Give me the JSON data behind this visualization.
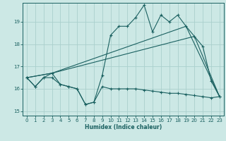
{
  "xlabel": "Humidex (Indice chaleur)",
  "bg_color": "#cce8e5",
  "grid_color": "#aad0cd",
  "line_color": "#1a6060",
  "xlim": [
    -0.5,
    23.5
  ],
  "ylim": [
    14.8,
    19.85
  ],
  "xticks": [
    0,
    1,
    2,
    3,
    4,
    5,
    6,
    7,
    8,
    9,
    10,
    11,
    12,
    13,
    14,
    15,
    16,
    17,
    18,
    19,
    20,
    21,
    22,
    23
  ],
  "yticks": [
    15,
    16,
    17,
    18,
    19
  ],
  "series_main_x": [
    0,
    1,
    2,
    3,
    4,
    5,
    6,
    7,
    8,
    9,
    10,
    11,
    12,
    13,
    14,
    15,
    16,
    17,
    18,
    19,
    20,
    21,
    22,
    23
  ],
  "series_main_y": [
    16.5,
    16.1,
    16.5,
    16.7,
    16.2,
    16.1,
    16.0,
    15.3,
    15.4,
    16.6,
    18.4,
    18.8,
    18.8,
    19.2,
    19.75,
    18.55,
    19.3,
    19.0,
    19.3,
    18.8,
    18.35,
    17.9,
    16.35,
    15.65
  ],
  "series_flat_x": [
    0,
    1,
    2,
    3,
    4,
    5,
    6,
    7,
    8,
    9,
    10,
    11,
    12,
    13,
    14,
    15,
    16,
    17,
    18,
    19,
    20,
    21,
    22,
    23
  ],
  "series_flat_y": [
    16.5,
    16.1,
    16.5,
    16.5,
    16.2,
    16.1,
    16.0,
    15.3,
    15.4,
    16.1,
    16.0,
    16.0,
    16.0,
    16.0,
    15.95,
    15.9,
    15.85,
    15.8,
    15.8,
    15.75,
    15.7,
    15.65,
    15.6,
    15.65
  ],
  "trend1_x": [
    0,
    3,
    20,
    23
  ],
  "trend1_y": [
    16.5,
    16.7,
    18.35,
    15.65
  ],
  "trend2_x": [
    0,
    3,
    19,
    23
  ],
  "trend2_y": [
    16.5,
    16.7,
    18.8,
    15.65
  ]
}
